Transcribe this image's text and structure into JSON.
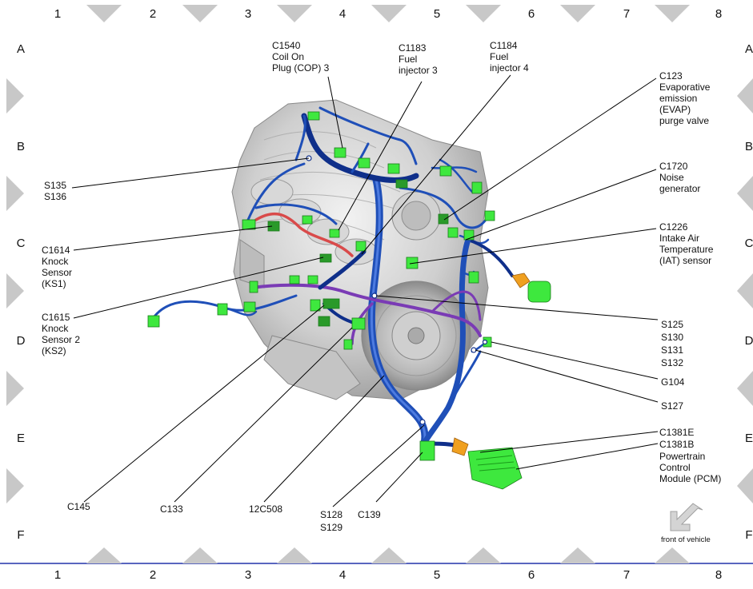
{
  "grid": {
    "columns": [
      "1",
      "2",
      "3",
      "4",
      "5",
      "6",
      "7",
      "8"
    ],
    "rows": [
      "A",
      "B",
      "C",
      "D",
      "E",
      "F"
    ]
  },
  "callouts": {
    "c1540": [
      "C1540",
      "Coil On",
      "Plug (COP) 3"
    ],
    "c1183": [
      "C1183",
      "Fuel",
      "injector 3"
    ],
    "c1184": [
      "C1184",
      "Fuel",
      "injector 4"
    ],
    "c123": [
      "C123",
      "Evaporative",
      "emission",
      "(EVAP)",
      "purge valve"
    ],
    "c1720": [
      "C1720",
      "Noise",
      "generator"
    ],
    "c1226": [
      "C1226",
      "Intake Air",
      "Temperature",
      "(IAT) sensor"
    ],
    "s135": [
      "S135",
      "S136"
    ],
    "c1614": [
      "C1614",
      "Knock",
      "Sensor",
      "(KS1)"
    ],
    "c1615": [
      "C1615",
      "Knock",
      "Sensor 2",
      "(KS2)"
    ],
    "s125": [
      "S125",
      "S130",
      "S131",
      "S132"
    ],
    "g104": [
      "G104"
    ],
    "s127": [
      "S127"
    ],
    "c1381": [
      "C1381E",
      "C1381B",
      "Powertrain",
      "Control",
      "Module (PCM)"
    ],
    "c145": [
      "C145"
    ],
    "c133": [
      "C133"
    ],
    "c12c508": [
      "12C508"
    ],
    "s128": [
      "S128",
      "S129"
    ],
    "c139": [
      "C139"
    ]
  },
  "orientation": {
    "label": "front of vehicle",
    "icon": "arrow-down-left-icon"
  },
  "colors": {
    "harness_blue": "#1f4fb8",
    "harness_dark_blue": "#0f2f8a",
    "harness_purple": "#7a3bb5",
    "harness_red": "#d94a4a",
    "connector_green": "#3ee83e",
    "connector_orange": "#f0a020",
    "engine_gray": "#c9c9c9",
    "frame_gray": "#c8c8c8",
    "bottom_rule": "#2233aa"
  }
}
